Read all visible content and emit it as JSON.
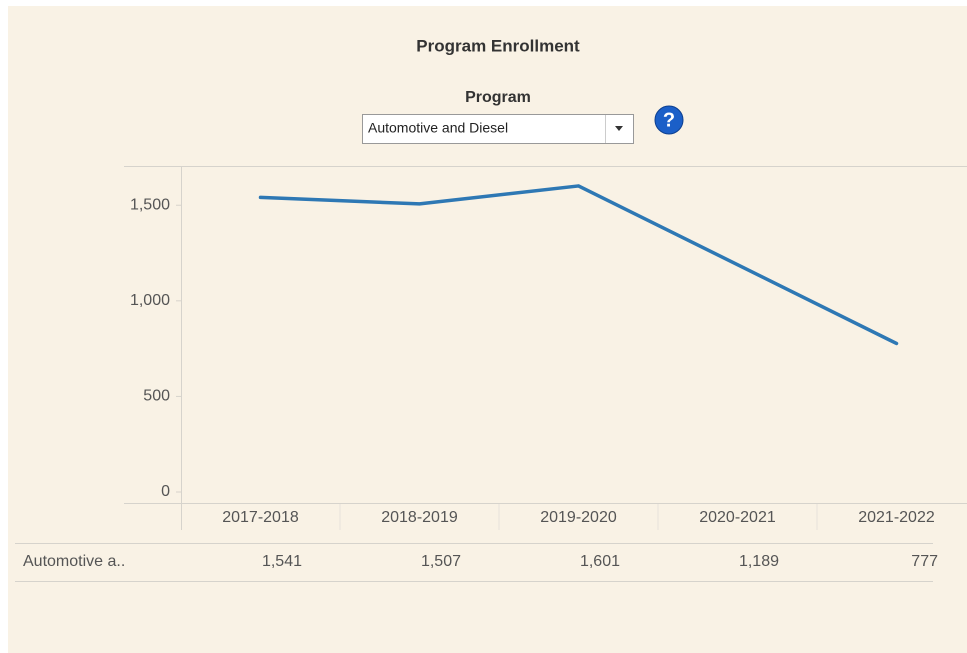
{
  "chart_data": {
    "type": "line",
    "title": "Program Enrollment",
    "categories": [
      "2017-2018",
      "2018-2019",
      "2019-2020",
      "2020-2021",
      "2021-2022"
    ],
    "series": [
      {
        "name": "Automotive a..",
        "color": "#2e78b4",
        "values": [
          1541,
          1507,
          1601,
          1189,
          777
        ],
        "value_labels": [
          "1,541",
          "1,507",
          "1,601",
          "1,189",
          "777"
        ]
      }
    ],
    "ylim": [
      0,
      1700
    ],
    "yticks": [
      0,
      500,
      {
        "value": 1000,
        "label": "1,000"
      },
      {
        "value": 1500,
        "label": "1,500"
      }
    ],
    "grid": false
  },
  "filter": {
    "label": "Program",
    "selected": "Automotive and Diesel"
  },
  "help_icon": "?"
}
